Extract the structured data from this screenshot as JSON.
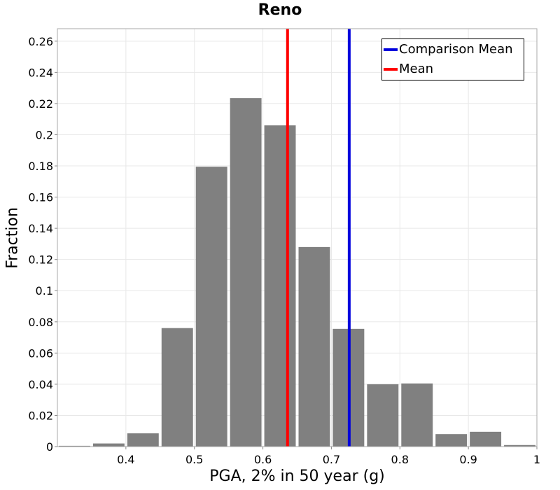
{
  "chart_data": {
    "type": "bar",
    "title": "Reno",
    "xlabel": "PGA, 2% in 50 year (g)",
    "ylabel": "Fraction",
    "xlim": [
      0.3,
      1.0
    ],
    "ylim": [
      0,
      0.268
    ],
    "xticks": [
      "0.4",
      "0.5",
      "0.6",
      "0.7",
      "0.8",
      "0.9",
      "1"
    ],
    "xtick_values": [
      0.4,
      0.5,
      0.6,
      0.7,
      0.8,
      0.9,
      1.0
    ],
    "yticks": [
      "0",
      "0.02",
      "0.04",
      "0.06",
      "0.08",
      "0.1",
      "0.12",
      "0.14",
      "0.16",
      "0.18",
      "0.2",
      "0.22",
      "0.24",
      "0.26"
    ],
    "ytick_values": [
      0,
      0.02,
      0.04,
      0.06,
      0.08,
      0.1,
      0.12,
      0.14,
      0.16,
      0.18,
      0.2,
      0.22,
      0.24,
      0.26
    ],
    "grid": true,
    "bin_width": 0.05,
    "bin_centers": [
      0.325,
      0.375,
      0.425,
      0.475,
      0.525,
      0.575,
      0.625,
      0.675,
      0.725,
      0.775,
      0.825,
      0.875,
      0.925,
      0.975
    ],
    "values": [
      0.0005,
      0.002,
      0.0085,
      0.076,
      0.1795,
      0.2235,
      0.206,
      0.128,
      0.0755,
      0.04,
      0.0405,
      0.008,
      0.0095,
      0.001
    ],
    "bar_color": "#808080",
    "vlines": [
      {
        "name": "Comparison Mean",
        "x": 0.726,
        "color": "#0000dd"
      },
      {
        "name": "Mean",
        "x": 0.636,
        "color": "#ff0000"
      }
    ],
    "legend_position": "top-right"
  }
}
